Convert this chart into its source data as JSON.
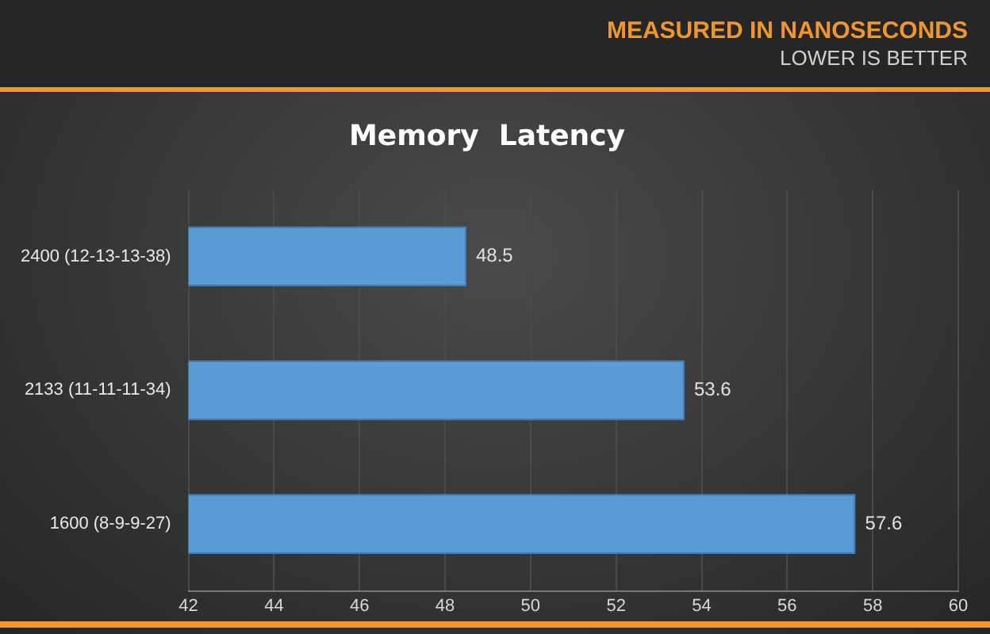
{
  "chart_data": {
    "type": "bar",
    "title": "Memory  Latency",
    "orientation": "horizontal",
    "categories": [
      "2400 (12-13-13-38)",
      "2133 (11-11-11-34)",
      "1600 (8-9-9-27)"
    ],
    "series": [
      {
        "color": "#5b9bd5",
        "values": [
          48.5,
          53.6,
          57.6
        ]
      }
    ],
    "xlim": [
      42,
      60
    ],
    "xticks": [
      42,
      44,
      46,
      48,
      50,
      52,
      54,
      56,
      58,
      60
    ],
    "grid": "x",
    "legend": false,
    "data_labels": true,
    "annotations": [
      "MEASURED IN NANOSECONDS",
      "LOWER IS BETTER"
    ]
  }
}
